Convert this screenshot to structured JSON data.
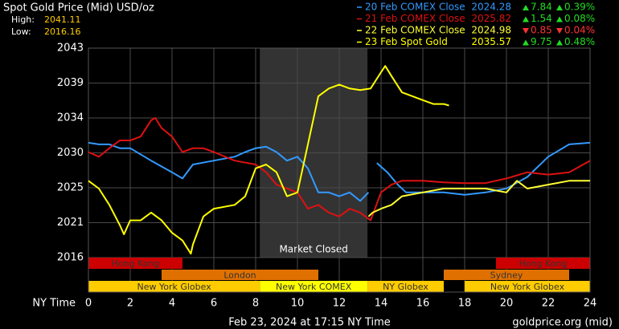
{
  "chart_data": {
    "type": "line",
    "title": "Spot Gold Price (Mid) USD/oz",
    "high_label": "High:",
    "high": 2041.11,
    "low_label": "Low:",
    "low": 2016.16,
    "x_label": "NY Time",
    "xlim": [
      0,
      24
    ],
    "xticks": [
      0,
      2,
      4,
      6,
      8,
      10,
      12,
      14,
      16,
      18,
      20,
      22,
      24
    ],
    "ylim": [
      2016,
      2043
    ],
    "yticks": [
      {
        "value": 2016,
        "label": "2016"
      },
      {
        "value": 2020.5,
        "label": "2021"
      },
      {
        "value": 2025,
        "label": "2025"
      },
      {
        "value": 2029.5,
        "label": "2030"
      },
      {
        "value": 2034,
        "label": "2034"
      },
      {
        "value": 2038.5,
        "label": "2039"
      },
      {
        "value": 2043,
        "label": "2043"
      }
    ],
    "grid": true,
    "market_closed": {
      "label": "Market Closed",
      "start": 8.2,
      "end": 13.35,
      "color": "#333333"
    },
    "sessions": [
      [
        {
          "name": "Hong Kong",
          "start": 0,
          "end": 4.5,
          "color": "#cc0000"
        },
        {
          "name": "Hong Kong",
          "start": 19.5,
          "end": 24,
          "color": "#cc0000"
        }
      ],
      [
        {
          "name": "London",
          "start": 3.5,
          "end": 11,
          "color": "#e07000"
        },
        {
          "name": "Sydney",
          "start": 17,
          "end": 23,
          "color": "#e07000"
        }
      ],
      [
        {
          "name": "New York Globex",
          "start": 0,
          "end": 8.2,
          "color": "#ffcc00"
        },
        {
          "name": "New York COMEX",
          "start": 8.2,
          "end": 13.35,
          "color": "#ffff00"
        },
        {
          "name": "NY Globex",
          "start": 13.35,
          "end": 17,
          "color": "#ffcc00"
        },
        {
          "name": "New York Globex",
          "start": 18,
          "end": 24,
          "color": "#ffcc00"
        }
      ]
    ],
    "series": [
      {
        "name": "20 Feb COMEX Close",
        "color": "#3399ff",
        "close": 2024.28,
        "change": 7.84,
        "change_pct": {
          "value": 0.39,
          "label": "0.39%"
        },
        "direction": "up",
        "x": [
          0,
          0.5,
          1,
          1.5,
          2,
          3,
          4,
          4.5,
          5,
          6,
          7,
          7.5,
          8,
          8.5,
          9,
          9.5,
          10,
          10.5,
          11,
          11.5,
          12,
          12.5,
          13,
          13.4,
          13.6,
          13.8,
          14.3,
          14.8,
          15.2,
          16,
          17,
          18,
          19,
          20,
          21,
          22,
          23,
          24
        ],
        "values": [
          2030.8,
          2030.6,
          2030.6,
          2030.1,
          2030.1,
          2028.5,
          2027.0,
          2026.2,
          2028.0,
          2028.5,
          2029.0,
          2029.6,
          2030.1,
          2030.3,
          2029.6,
          2028.5,
          2029.0,
          2027.5,
          2024.4,
          2024.4,
          2023.9,
          2024.4,
          2023.3,
          2024.4,
          null,
          2028.2,
          2027.0,
          2025.4,
          2024.4,
          2024.4,
          2024.4,
          2024.1,
          2024.4,
          2024.9,
          2026.4,
          2029.0,
          2030.6,
          2030.8
        ]
      },
      {
        "name": "21 Feb COMEX Close",
        "color": "#dd1111",
        "close": 2025.82,
        "change": 1.54,
        "change_pct": {
          "value": 0.08,
          "label": "0.08%"
        },
        "direction": "up",
        "x": [
          0,
          0.5,
          1,
          1.5,
          2,
          2.5,
          3,
          3.2,
          3.5,
          4,
          4.5,
          5,
          5.5,
          6,
          7,
          8,
          8.5,
          9,
          10,
          10.5,
          11,
          11.5,
          12,
          12.5,
          13,
          13.5,
          14,
          14.5,
          15,
          16,
          17,
          18,
          19,
          20,
          21,
          22,
          23,
          24
        ],
        "values": [
          2029.6,
          2029.0,
          2030.1,
          2031.1,
          2031.1,
          2031.6,
          2033.7,
          2034.0,
          2032.7,
          2031.6,
          2029.6,
          2030.1,
          2030.1,
          2029.6,
          2028.5,
          2028.0,
          2027.0,
          2025.4,
          2024.4,
          2022.3,
          2022.8,
          2021.8,
          2021.3,
          2022.3,
          2021.8,
          2020.8,
          2024.4,
          2025.4,
          2025.9,
          2025.9,
          2025.7,
          2025.6,
          2025.6,
          2026.2,
          2027.0,
          2026.7,
          2027.0,
          2028.5
        ]
      },
      {
        "name": "22 Feb COMEX Close",
        "color": "#ffff33",
        "close": 2024.98,
        "change": 0.85,
        "change_pct": {
          "value": 0.04,
          "label": "0.04%"
        },
        "direction": "down",
        "x": [
          13.4,
          13.6,
          14,
          14.5,
          15,
          16,
          17,
          18,
          19,
          20,
          20.5,
          21,
          22,
          23,
          24
        ],
        "values": [
          2021.3,
          2021.8,
          2022.3,
          2022.8,
          2023.9,
          2024.4,
          2024.9,
          2024.9,
          2024.9,
          2024.4,
          2025.9,
          2024.9,
          2025.4,
          2025.9,
          2025.9
        ]
      },
      {
        "name": "23 Feb Spot Gold",
        "color": "#ffff00",
        "close": 2035.57,
        "change": 9.75,
        "change_pct": {
          "value": 0.48,
          "label": "0.48%"
        },
        "direction": "up",
        "x": [
          0,
          0.5,
          1,
          1.5,
          1.7,
          2,
          2.5,
          3,
          3.5,
          4,
          4.5,
          4.9,
          5,
          5.5,
          6,
          7,
          7.5,
          8,
          8.5,
          9,
          9.5,
          10,
          10.5,
          11,
          11.5,
          12,
          12.5,
          13,
          13.5,
          14,
          14.2,
          14.5,
          15,
          16,
          16.5,
          17,
          17.25
        ],
        "values": [
          2025.9,
          2024.9,
          2022.8,
          2020.2,
          2019.0,
          2020.8,
          2020.8,
          2021.8,
          2020.8,
          2019.2,
          2018.2,
          2016.5,
          2017.7,
          2021.3,
          2022.3,
          2022.8,
          2023.9,
          2027.5,
          2028.0,
          2027.0,
          2023.9,
          2024.4,
          2030.6,
          2036.8,
          2037.8,
          2038.3,
          2037.8,
          2037.6,
          2037.8,
          2039.9,
          2040.7,
          2039.4,
          2037.3,
          2036.3,
          2035.8,
          2035.8,
          2035.6
        ]
      }
    ],
    "up_color": "#22dd22",
    "down_color": "#ff3333",
    "timestamp": "Feb 23, 2024 at 17:15 NY Time",
    "source": "goldprice.org (mid)"
  }
}
